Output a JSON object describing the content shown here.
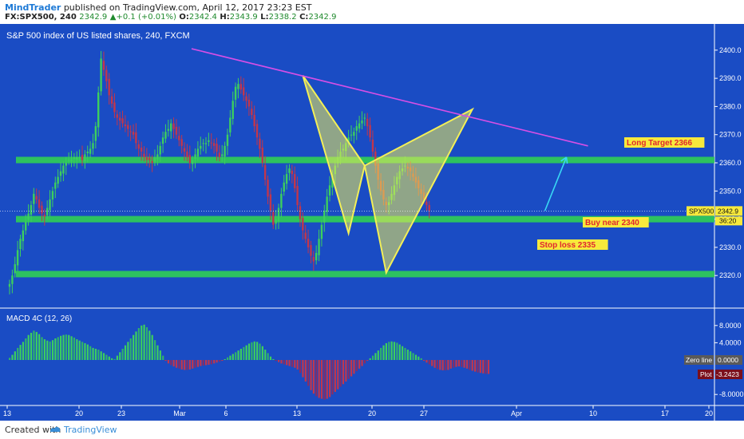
{
  "header": {
    "author": "MindTrader",
    "published_text": "published on TradingView.com, April 12, 2017 23:23 EST",
    "symbol": "FX:SPX500, 240",
    "last": "2342.9",
    "change": "+0.1 (+0.01%)",
    "o_label": "O:",
    "o_value": "2342.4",
    "h_label": "H:",
    "h_value": "2343.9",
    "l_label": "L:",
    "l_value": "2338.2",
    "c_label": "C:",
    "c_value": "2342.9"
  },
  "footer": {
    "created": "Created with",
    "brand": "TradingView"
  },
  "colors": {
    "background": "#1a4cc4",
    "bull_candle": "#3ccf5e",
    "bear_candle": "#c2364c",
    "support_zone": "#2ec85a",
    "trendline": "#d64fe6",
    "pattern": "#f2ef58",
    "target_arrow": "#38d8f5",
    "annotation_text": "#e0262f",
    "annotation_bg": "#f7e93c"
  },
  "chart_data": [
    {
      "type": "candlestick",
      "title": "S&P 500 index of US listed shares, 240, FXCM",
      "x_ticks": [
        "13",
        "20",
        "23",
        "Mar",
        "6",
        "13",
        "20",
        "27",
        "Apr",
        "10",
        "17",
        "20"
      ],
      "ylim": [
        2315,
        2405
      ],
      "y_ticks": [
        "2400.0",
        "2390.0",
        "2380.0",
        "2370.0",
        "2360.0",
        "2350.0",
        "2340.0",
        "2330.0",
        "2320.0"
      ],
      "price_label": "SPX500",
      "last_price": "2342.9",
      "countdown": "36:20",
      "support_levels": [
        2361,
        2340,
        2320.5
      ],
      "trendline": [
        [
          0,
          2400.5
        ],
        [
          215,
          2366
        ]
      ],
      "harmonic_pattern": [
        [
          109,
          2391
        ],
        [
          126,
          2335
        ],
        [
          132,
          2359
        ],
        [
          140,
          2321
        ],
        [
          172,
          2379
        ]
      ],
      "target_arrow": [
        [
          199,
          2343
        ],
        [
          207,
          2362
        ]
      ],
      "annotations": [
        "Long Target 2366",
        "Buy near 2340",
        "Stop loss 2335"
      ],
      "candles_close": [
        2317,
        2320,
        2324,
        2329,
        2333,
        2336,
        2339,
        2342,
        2345,
        2349,
        2347,
        2344,
        2342,
        2341,
        2344,
        2347,
        2350,
        2353,
        2355,
        2357,
        2359,
        2360,
        2361,
        2361,
        2362,
        2362,
        2362,
        2361,
        2363,
        2364,
        2365,
        2367,
        2373,
        2385,
        2397,
        2393,
        2389,
        2384,
        2381,
        2378,
        2376,
        2375,
        2374,
        2373,
        2372,
        2371,
        2370,
        2367,
        2365,
        2364,
        2362,
        2361,
        2361,
        2360,
        2362,
        2363,
        2366,
        2369,
        2371,
        2372,
        2374,
        2372,
        2370,
        2368,
        2366,
        2364,
        2362,
        2360,
        2361,
        2363,
        2365,
        2366,
        2367,
        2367,
        2368,
        2367,
        2366,
        2364,
        2362,
        2363,
        2366,
        2370,
        2376,
        2382,
        2387,
        2388,
        2386,
        2384,
        2382,
        2380,
        2377,
        2373,
        2369,
        2365,
        2360,
        2354,
        2348,
        2343,
        2338,
        2340,
        2344,
        2349,
        2353,
        2356,
        2358,
        2356,
        2351,
        2345,
        2340,
        2336,
        2333,
        2330,
        2327,
        2325,
        2328,
        2333,
        2338,
        2343,
        2348,
        2352,
        2356,
        2359,
        2362,
        2364,
        2365,
        2367,
        2369,
        2370,
        2371,
        2373,
        2374,
        2375,
        2376,
        2373,
        2369,
        2364,
        2359,
        2354,
        2350,
        2347,
        2345,
        2346,
        2349,
        2352,
        2355,
        2357,
        2358,
        2359,
        2358,
        2357,
        2355,
        2353,
        2351,
        2349,
        2347,
        2345,
        2343
      ],
      "macd": {
        "title": "MACD 4C (12, 26)",
        "ylim": [
          -11,
          11
        ],
        "y_ticks": [
          "8.0000",
          "4.0000",
          "-8.0000"
        ],
        "zero_label": "Zero line",
        "zero_value": "0.0000",
        "plot_label": "Plot",
        "plot_value": "-3.2423",
        "histogram": [
          0.5,
          1.2,
          2.0,
          2.8,
          3.5,
          4.2,
          5.0,
          5.8,
          6.3,
          6.8,
          6.5,
          6.0,
          5.3,
          4.8,
          4.5,
          4.3,
          4.6,
          5.0,
          5.3,
          5.6,
          5.8,
          5.9,
          5.8,
          5.5,
          5.2,
          4.8,
          4.5,
          4.2,
          3.9,
          3.6,
          3.2,
          2.8,
          2.6,
          2.4,
          2.0,
          1.6,
          1.2,
          0.8,
          0.4,
          0.2,
          1.0,
          1.8,
          2.6,
          3.4,
          4.2,
          5.0,
          5.8,
          6.6,
          7.4,
          8.0,
          8.2,
          7.6,
          6.8,
          5.8,
          4.6,
          3.4,
          2.2,
          1.0,
          -0.2,
          -0.8,
          -1.2,
          -1.5,
          -1.8,
          -2.0,
          -2.2,
          -2.3,
          -2.3,
          -2.2,
          -2.0,
          -1.8,
          -1.6,
          -1.4,
          -1.3,
          -1.2,
          -1.1,
          -1.0,
          -0.8,
          -0.6,
          -0.4,
          -0.2,
          0.2,
          0.6,
          1.0,
          1.4,
          1.8,
          2.2,
          2.6,
          3.0,
          3.4,
          3.8,
          4.1,
          4.3,
          4.2,
          3.8,
          3.2,
          2.4,
          1.6,
          0.8,
          0.2,
          -0.2,
          -0.5,
          -0.8,
          -1.0,
          -1.2,
          -1.4,
          -1.6,
          -1.8,
          -2.2,
          -3.0,
          -4.0,
          -5.0,
          -6.0,
          -7.0,
          -7.8,
          -8.4,
          -8.8,
          -9.0,
          -9.2,
          -9.0,
          -8.6,
          -8.0,
          -7.4,
          -6.8,
          -6.2,
          -5.6,
          -5.0,
          -4.4,
          -3.8,
          -3.2,
          -2.6,
          -2.0,
          -1.4,
          -0.8,
          -0.2,
          0.4,
          1.0,
          1.6,
          2.2,
          2.8,
          3.4,
          3.9,
          4.2,
          4.3,
          4.2,
          4.0,
          3.6,
          3.2,
          2.8,
          2.4,
          2.0,
          1.6,
          1.2,
          0.8,
          0.4,
          -0.2,
          -0.6,
          -1.0,
          -1.4,
          -1.8,
          -2.1,
          -2.3,
          -2.4,
          -2.4,
          -2.3,
          -2.0,
          -1.8,
          -1.6,
          -1.5,
          -1.6,
          -1.8,
          -2.0,
          -2.3,
          -2.5,
          -2.7,
          -2.9,
          -3.0,
          -3.1,
          -3.2,
          -3.24
        ]
      }
    }
  ]
}
